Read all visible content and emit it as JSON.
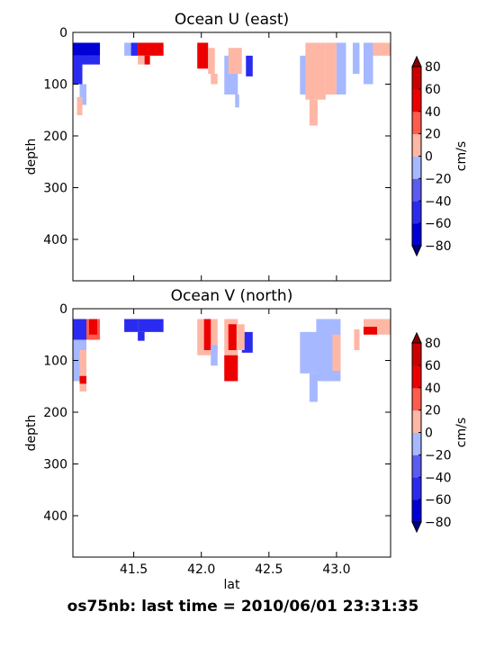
{
  "figure_title": "os75nb: last time = 2010/06/01 23:31:35",
  "colormap": {
    "bounds": [
      -80,
      -60,
      -40,
      -20,
      0,
      20,
      40,
      60,
      80
    ],
    "colors": [
      "#0000d6",
      "#2b2bf0",
      "#5c5cf2",
      "#a6b8ff",
      "#ffb7a5",
      "#ff5b4e",
      "#ed0000",
      "#cc0000"
    ],
    "over_color": "#8b0000",
    "under_color": "#00008b",
    "tick_labels": [
      "80",
      "60",
      "40",
      "20",
      "0",
      "−20",
      "−40",
      "−60",
      "−80"
    ],
    "label": "cm/s"
  },
  "chart_data": [
    {
      "type": "heatmap",
      "title": "Ocean U (east)",
      "xlabel": "",
      "ylabel": "depth",
      "xlim": [
        41.05,
        43.4
      ],
      "ylim": [
        480,
        0
      ],
      "xticks": [
        "41.5",
        "42.0",
        "42.5",
        "43.0"
      ],
      "yticks": [
        "0",
        "100",
        "200",
        "300",
        "400"
      ],
      "cells": [
        {
          "lat": [
            41.05,
            41.25
          ],
          "depth": [
            20,
            45
          ],
          "v": -70
        },
        {
          "lat": [
            41.05,
            41.12
          ],
          "depth": [
            45,
            100
          ],
          "v": -45
        },
        {
          "lat": [
            41.1,
            41.25
          ],
          "depth": [
            45,
            62
          ],
          "v": -45
        },
        {
          "lat": [
            41.1,
            41.15
          ],
          "depth": [
            100,
            140
          ],
          "v": -10
        },
        {
          "lat": [
            41.08,
            41.12
          ],
          "depth": [
            125,
            160
          ],
          "v": 10
        },
        {
          "lat": [
            41.43,
            41.48
          ],
          "depth": [
            20,
            45
          ],
          "v": -10
        },
        {
          "lat": [
            41.48,
            41.53
          ],
          "depth": [
            20,
            45
          ],
          "v": -45
        },
        {
          "lat": [
            41.53,
            41.72
          ],
          "depth": [
            20,
            45
          ],
          "v": 50
        },
        {
          "lat": [
            41.53,
            41.58
          ],
          "depth": [
            45,
            62
          ],
          "v": 10
        },
        {
          "lat": [
            41.58,
            41.62
          ],
          "depth": [
            45,
            62
          ],
          "v": 50
        },
        {
          "lat": [
            41.97,
            42.05
          ],
          "depth": [
            20,
            70
          ],
          "v": 50
        },
        {
          "lat": [
            42.05,
            42.1
          ],
          "depth": [
            30,
            80
          ],
          "v": 10
        },
        {
          "lat": [
            42.07,
            42.12
          ],
          "depth": [
            80,
            100
          ],
          "v": 10
        },
        {
          "lat": [
            42.17,
            42.27
          ],
          "depth": [
            45,
            120
          ],
          "v": -10
        },
        {
          "lat": [
            42.2,
            42.3
          ],
          "depth": [
            30,
            80
          ],
          "v": 10
        },
        {
          "lat": [
            42.25,
            42.28
          ],
          "depth": [
            120,
            145
          ],
          "v": -10
        },
        {
          "lat": [
            42.33,
            42.38
          ],
          "depth": [
            45,
            85
          ],
          "v": -45
        },
        {
          "lat": [
            42.73,
            42.78
          ],
          "depth": [
            45,
            120
          ],
          "v": -10
        },
        {
          "lat": [
            42.77,
            42.92
          ],
          "depth": [
            20,
            130
          ],
          "v": 10
        },
        {
          "lat": [
            42.8,
            42.86
          ],
          "depth": [
            130,
            180
          ],
          "v": 10
        },
        {
          "lat": [
            42.92,
            43.0
          ],
          "depth": [
            20,
            120
          ],
          "v": 10
        },
        {
          "lat": [
            43.0,
            43.07
          ],
          "depth": [
            20,
            120
          ],
          "v": -10
        },
        {
          "lat": [
            43.12,
            43.17
          ],
          "depth": [
            20,
            80
          ],
          "v": -10
        },
        {
          "lat": [
            43.2,
            43.27
          ],
          "depth": [
            20,
            100
          ],
          "v": -10
        },
        {
          "lat": [
            43.27,
            43.4
          ],
          "depth": [
            20,
            45
          ],
          "v": 10
        }
      ]
    },
    {
      "type": "heatmap",
      "title": "Ocean V (north)",
      "xlabel": "lat",
      "ylabel": "depth",
      "xlim": [
        41.05,
        43.4
      ],
      "ylim": [
        480,
        0
      ],
      "xticks": [
        "41.5",
        "42.0",
        "42.5",
        "43.0"
      ],
      "yticks": [
        "0",
        "100",
        "200",
        "300",
        "400"
      ],
      "cells": [
        {
          "lat": [
            41.05,
            41.15
          ],
          "depth": [
            20,
            140
          ],
          "v": -10
        },
        {
          "lat": [
            41.05,
            41.15
          ],
          "depth": [
            20,
            60
          ],
          "v": -45
        },
        {
          "lat": [
            41.15,
            41.25
          ],
          "depth": [
            20,
            60
          ],
          "v": 30
        },
        {
          "lat": [
            41.17,
            41.23
          ],
          "depth": [
            20,
            50
          ],
          "v": 50
        },
        {
          "lat": [
            41.1,
            41.15
          ],
          "depth": [
            80,
            160
          ],
          "v": 10
        },
        {
          "lat": [
            41.1,
            41.15
          ],
          "depth": [
            130,
            145
          ],
          "v": 45
        },
        {
          "lat": [
            41.43,
            41.53
          ],
          "depth": [
            20,
            45
          ],
          "v": -45
        },
        {
          "lat": [
            41.53,
            41.58
          ],
          "depth": [
            45,
            62
          ],
          "v": -45
        },
        {
          "lat": [
            41.53,
            41.72
          ],
          "depth": [
            20,
            45
          ],
          "v": -45
        },
        {
          "lat": [
            41.97,
            42.12
          ],
          "depth": [
            20,
            90
          ],
          "v": 10
        },
        {
          "lat": [
            42.02,
            42.07
          ],
          "depth": [
            20,
            80
          ],
          "v": 45
        },
        {
          "lat": [
            42.07,
            42.12
          ],
          "depth": [
            70,
            110
          ],
          "v": -10
        },
        {
          "lat": [
            42.17,
            42.27
          ],
          "depth": [
            20,
            130
          ],
          "v": 10
        },
        {
          "lat": [
            42.2,
            42.26
          ],
          "depth": [
            30,
            80
          ],
          "v": 50
        },
        {
          "lat": [
            42.17,
            42.27
          ],
          "depth": [
            90,
            140
          ],
          "v": 45
        },
        {
          "lat": [
            42.3,
            42.38
          ],
          "depth": [
            45,
            85
          ],
          "v": -45
        },
        {
          "lat": [
            42.27,
            42.32
          ],
          "depth": [
            30,
            80
          ],
          "v": 10
        },
        {
          "lat": [
            42.73,
            43.03
          ],
          "depth": [
            45,
            125
          ],
          "v": -10
        },
        {
          "lat": [
            42.8,
            42.86
          ],
          "depth": [
            125,
            180
          ],
          "v": -10
        },
        {
          "lat": [
            42.85,
            43.03
          ],
          "depth": [
            20,
            140
          ],
          "v": -10
        },
        {
          "lat": [
            42.97,
            43.03
          ],
          "depth": [
            50,
            120
          ],
          "v": 10
        },
        {
          "lat": [
            43.13,
            43.17
          ],
          "depth": [
            40,
            80
          ],
          "v": 10
        },
        {
          "lat": [
            43.2,
            43.4
          ],
          "depth": [
            20,
            50
          ],
          "v": 10
        },
        {
          "lat": [
            43.2,
            43.3
          ],
          "depth": [
            35,
            50
          ],
          "v": 45
        }
      ]
    }
  ]
}
